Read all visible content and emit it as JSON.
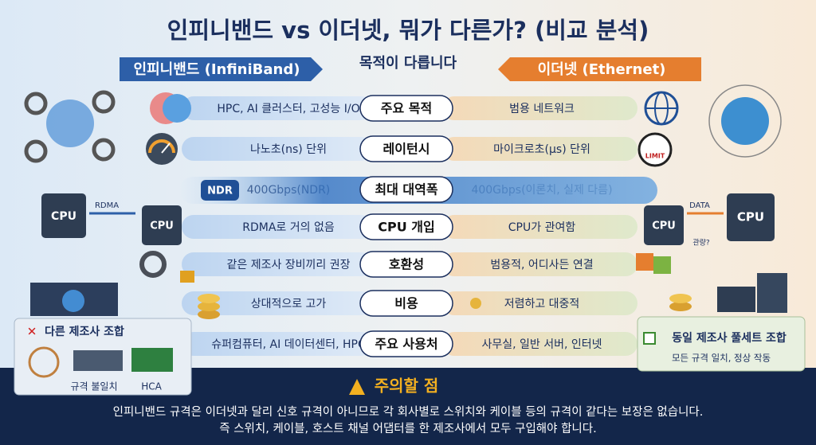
{
  "title": "인피니밴드 vs 이더넷, 뭐가 다른가? (비교 분석)",
  "header": {
    "left": "인피니밴드 (InfiniBand)",
    "center": "목적이 다릅니다",
    "right": "이더넷 (Ethernet)"
  },
  "rows": [
    {
      "left": "HPC, AI 클러스터, 고성능 I/O",
      "center": "주요 목적",
      "right": "범용 네트워크"
    },
    {
      "left": "나노초(ns) 단위",
      "center": "레이턴시",
      "right": "마이크로초(μs) 단위"
    },
    {
      "left": "400Gbps(NDR)",
      "center": "최대 대역폭",
      "right": "400Gbps(이론치, 실제 다름)"
    },
    {
      "left": "RDMA로 거의 없음",
      "center": "CPU 개입",
      "right": "CPU가 관여함"
    },
    {
      "left": "같은 제조사 장비끼리 권장",
      "center": "호환성",
      "right": "범용적, 어디사든 연결"
    },
    {
      "left": "상대적으로 고가",
      "center": "비용",
      "right": "저렴하고 대중적"
    },
    {
      "left": "슈퍼컴퓨터, AI 데이터센터, HPC",
      "center": "주요 사용처",
      "right": "사무실, 일반 서버, 인터넷"
    }
  ],
  "icons": {
    "rdma": "RDMA",
    "cpu": "CPU",
    "ndr": "NDR",
    "limit": "LIMIT",
    "data": "DATA",
    "involve": "관량?"
  },
  "left_box": {
    "title": "다른 제조사 조합",
    "mismatch": "규격 불일치",
    "hca": "HCA"
  },
  "right_box": {
    "title": "동일 제조사 풀세트 조합",
    "subtitle": "모든 규격 일치, 정상 작동"
  },
  "warning": {
    "title": "주의할 점",
    "lines": [
      "인피니밴드 규격은 이더넷과 달리 신호 규격이 아니므로 각 회사별로 스위치와 케이블 등의 규격이 같다는 보장은 없습니다.",
      "즉 스위치, 케이블, 호스트 채널 어댑터를 한 제조사에서 모두 구입해야 합니다."
    ]
  }
}
